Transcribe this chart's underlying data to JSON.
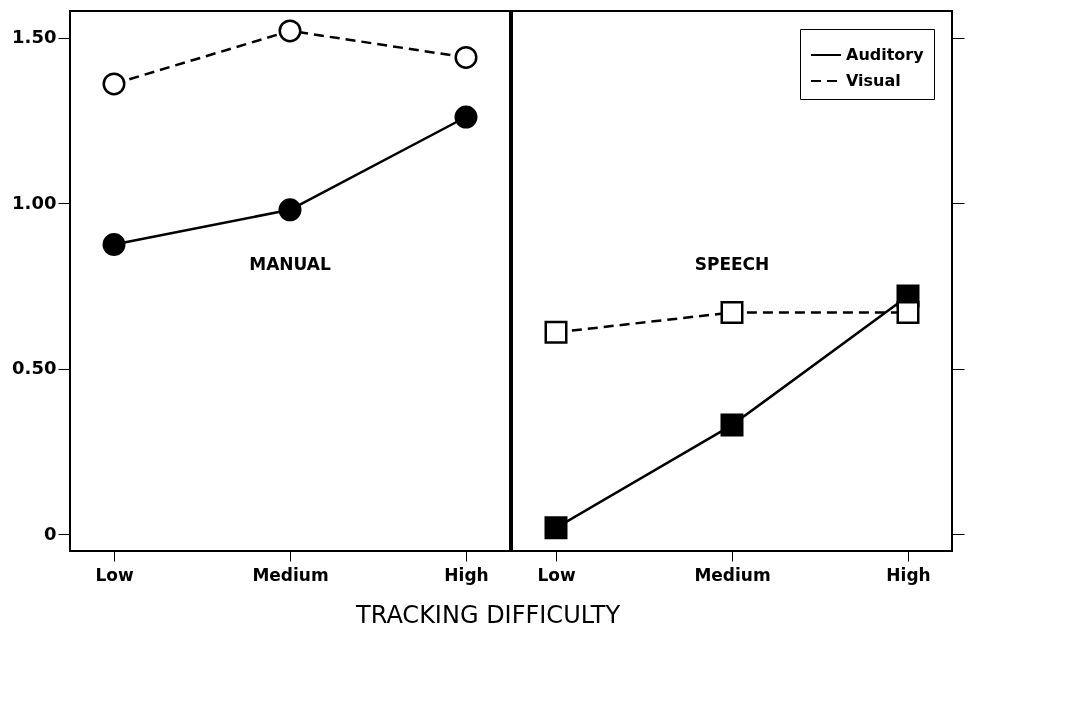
{
  "chart_data": [
    {
      "type": "line",
      "xlabel": "TRACKING DIFFICULTY",
      "categories": [
        "Low",
        "Medium",
        "High"
      ],
      "annotations": [
        "MANUAL"
      ],
      "ylim": [
        -0.05,
        1.58
      ],
      "yticks": [
        {
          "value": 0,
          "label": "0"
        },
        {
          "value": 0.5,
          "label": "0.50"
        },
        {
          "value": 1.0,
          "label": "1.00"
        },
        {
          "value": 1.5,
          "label": "1.50"
        }
      ],
      "grid": false,
      "legend": false,
      "marker": "circle",
      "series": [
        {
          "color": "#000000",
          "line_style": "solid",
          "values": [
            0.875,
            0.98,
            1.26
          ]
        },
        {
          "color": "#000000",
          "line_style": "dashed",
          "values": [
            1.36,
            1.52,
            1.44
          ]
        }
      ]
    },
    {
      "type": "line",
      "categories": [
        "Low",
        "Medium",
        "High"
      ],
      "annotations": [
        "SPEECH"
      ],
      "ylim": [
        -0.05,
        1.58
      ],
      "yticks": [
        0,
        0.5,
        1.0,
        1.5
      ],
      "tick_labels": "x",
      "grid": false,
      "legend": "top right",
      "marker": "square",
      "series": [
        {
          "name": "Auditory",
          "color": "#000000",
          "line_style": "solid",
          "values": [
            0.02,
            0.33,
            0.72
          ]
        },
        {
          "name": "Visual",
          "color": "#000000",
          "line_style": "dashed",
          "values": [
            0.61,
            0.67,
            0.67
          ]
        }
      ]
    }
  ]
}
